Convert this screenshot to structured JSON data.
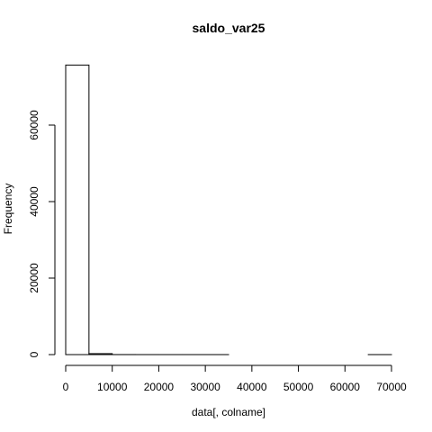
{
  "chart_data": {
    "type": "bar",
    "title": "saldo_var25",
    "xlabel": "data[, colname]",
    "ylabel": "Frequency",
    "x_ticks": [
      0,
      10000,
      20000,
      30000,
      40000,
      50000,
      60000,
      70000
    ],
    "x_tick_labels": [
      "0",
      "10000",
      "20000",
      "30000",
      "40000",
      "50000",
      "60000",
      "70000"
    ],
    "y_ticks": [
      0,
      20000,
      40000,
      60000
    ],
    "y_tick_labels": [
      "0",
      "20000",
      "40000",
      "60000"
    ],
    "xlim": [
      0,
      70000
    ],
    "ylim": [
      0,
      76000
    ],
    "bins": [
      {
        "start": 0,
        "end": 5000,
        "count": 75700
      },
      {
        "start": 5000,
        "end": 10000,
        "count": 250
      },
      {
        "start": 10000,
        "end": 15000,
        "count": 10
      },
      {
        "start": 15000,
        "end": 20000,
        "count": 3
      },
      {
        "start": 20000,
        "end": 25000,
        "count": 2
      },
      {
        "start": 25000,
        "end": 30000,
        "count": 1
      },
      {
        "start": 30000,
        "end": 35000,
        "count": 1
      },
      {
        "start": 35000,
        "end": 40000,
        "count": 0
      },
      {
        "start": 40000,
        "end": 45000,
        "count": 0
      },
      {
        "start": 45000,
        "end": 50000,
        "count": 0
      },
      {
        "start": 50000,
        "end": 55000,
        "count": 0
      },
      {
        "start": 55000,
        "end": 60000,
        "count": 0
      },
      {
        "start": 60000,
        "end": 65000,
        "count": 0
      },
      {
        "start": 65000,
        "end": 70000,
        "count": 1
      }
    ],
    "grid": false,
    "legend": "none"
  }
}
